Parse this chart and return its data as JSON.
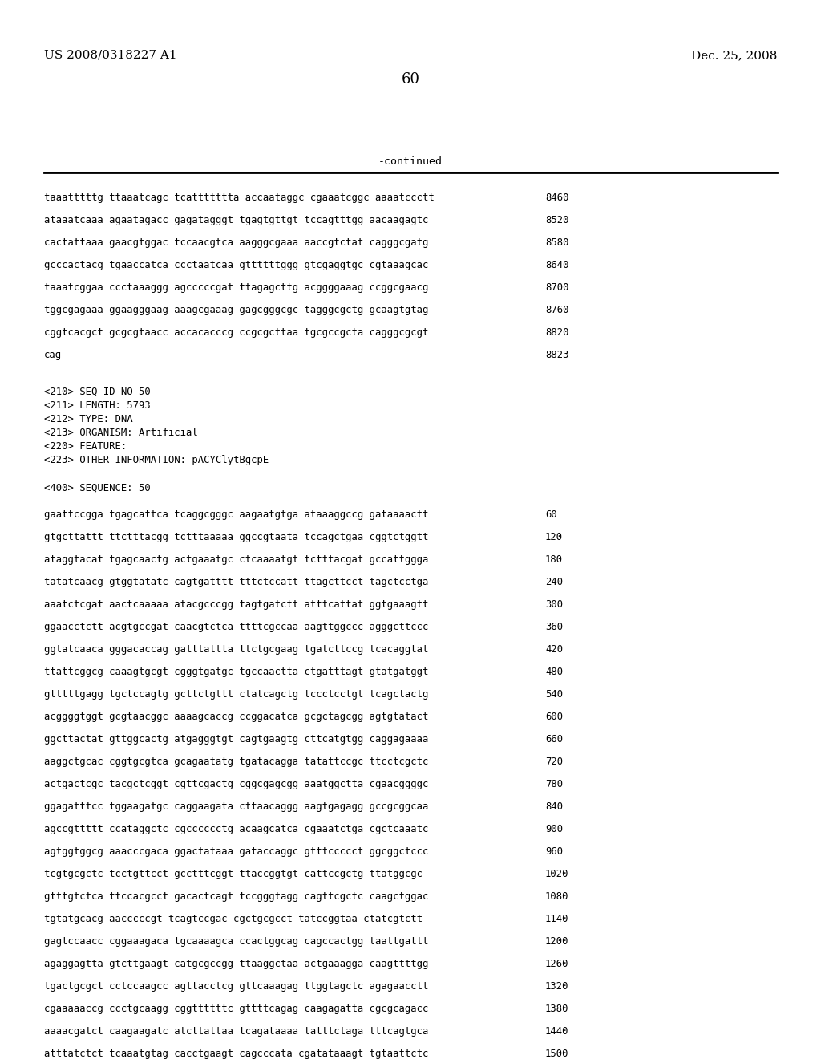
{
  "background_color": "#ffffff",
  "header_left": "US 2008/0318227 A1",
  "header_right": "Dec. 25, 2008",
  "page_number": "60",
  "continued_label": "-continued",
  "sequence_lines_part1": [
    [
      "taaatttttg ttaaatcagc tcattttttta accaataggc cgaaatcggc aaaatccctt",
      "8460"
    ],
    [
      "ataaatcaaa agaatagacc gagatagggt tgagtgttgt tccagtttgg aacaagagtc",
      "8520"
    ],
    [
      "cactattaaa gaacgtggac tccaacgtca aagggcgaaa aaccgtctat cagggcgatg",
      "8580"
    ],
    [
      "gcccactacg tgaaccatca ccctaatcaa gttttttggg gtcgaggtgc cgtaaagcac",
      "8640"
    ],
    [
      "taaatcggaa ccctaaaggg agcccccgat ttagagcttg acggggaaag ccggcgaacg",
      "8700"
    ],
    [
      "tggcgagaaa ggaagggaag aaagcgaaag gagcgggcgc tagggcgctg gcaagtgtag",
      "8760"
    ],
    [
      "cggtcacgct gcgcgtaacc accacacccg ccgcgcttaa tgcgccgcta cagggcgcgt",
      "8820"
    ],
    [
      "cag",
      "8823"
    ]
  ],
  "metadata_lines": [
    "<210> SEQ ID NO 50",
    "<211> LENGTH: 5793",
    "<212> TYPE: DNA",
    "<213> ORGANISM: Artificial",
    "<220> FEATURE:",
    "<223> OTHER INFORMATION: pACYClytBgcpE"
  ],
  "sequence_label": "<400> SEQUENCE: 50",
  "sequence_lines_part2": [
    [
      "gaattccgga tgagcattca tcaggcgggc aagaatgtga ataaaggccg gataaaactt",
      "60"
    ],
    [
      "gtgcttattt ttctttacgg tctttaaaaa ggccgtaata tccagctgaa cggtctggtt",
      "120"
    ],
    [
      "ataggtacat tgagcaactg actgaaatgc ctcaaaatgt tctttacgat gccattggga",
      "180"
    ],
    [
      "tatatcaacg gtggtatatc cagtgatttt tttctccatt ttagcttcct tagctcctga",
      "240"
    ],
    [
      "aaatctcgat aactcaaaaa atacgcccgg tagtgatctt atttcattat ggtgaaagtt",
      "300"
    ],
    [
      "ggaacctctt acgtgccgat caacgtctca ttttcgccaa aagttggccc agggcttccc",
      "360"
    ],
    [
      "ggtatcaaca gggacaccag gatttattta ttctgcgaag tgatcttccg tcacaggtat",
      "420"
    ],
    [
      "ttattcggcg caaagtgcgt cgggtgatgc tgccaactta ctgatttagt gtatgatggt",
      "480"
    ],
    [
      "gtttttgagg tgctccagtg gcttctgttt ctatcagctg tccctcctgt tcagctactg",
      "540"
    ],
    [
      "acggggtggt gcgtaacggc aaaagcaccg ccggacatca gcgctagcgg agtgtatact",
      "600"
    ],
    [
      "ggcttactat gttggcactg atgagggtgt cagtgaagtg cttcatgtgg caggagaaaa",
      "660"
    ],
    [
      "aaggctgcac cggtgcgtca gcagaatatg tgatacagga tatattccgc ttcctcgctc",
      "720"
    ],
    [
      "actgactcgc tacgctcggt cgttcgactg cggcgagcgg aaatggctta cgaacggggc",
      "780"
    ],
    [
      "ggagatttcc tggaagatgc caggaagata cttaacaggg aagtgagagg gccgcggcaa",
      "840"
    ],
    [
      "agccgttttt ccataggctc cgcccccctg acaagcatca cgaaatctga cgctcaaatc",
      "900"
    ],
    [
      "agtggtggcg aaacccgaca ggactataaa gataccaggc gtttccccct ggcggctccc",
      "960"
    ],
    [
      "tcgtgcgctc tcctgttcct gcctttcggt ttaccggtgt cattccgctg ttatggcgc",
      "1020"
    ],
    [
      "gtttgtctca ttccacgcct gacactcagt tccgggtagg cagttcgctc caagctggac",
      "1080"
    ],
    [
      "tgtatgcacg aacccccgt tcagtccgac cgctgcgcct tatccggtaa ctatcgtctt",
      "1140"
    ],
    [
      "gagtccaacc cggaaagaca tgcaaaagca ccactggcag cagccactgg taattgattt",
      "1200"
    ],
    [
      "agaggagtta gtcttgaagt catgcgccgg ttaaggctaa actgaaagga caagttttgg",
      "1260"
    ],
    [
      "tgactgcgct cctccaagcc agttacctcg gttcaaagag ttggtagctc agagaacctt",
      "1320"
    ],
    [
      "cgaaaaaccg ccctgcaagg cggttttttc gttttcagag caagagatta cgcgcagacc",
      "1380"
    ],
    [
      "aaaacgatct caagaagatc atcttattaa tcagataaaa tatttctaga tttcagtgca",
      "1440"
    ],
    [
      "atttatctct tcaaatgtag cacctgaagt cagcccata cgatataaagt tgtaattctc",
      "1500"
    ]
  ]
}
